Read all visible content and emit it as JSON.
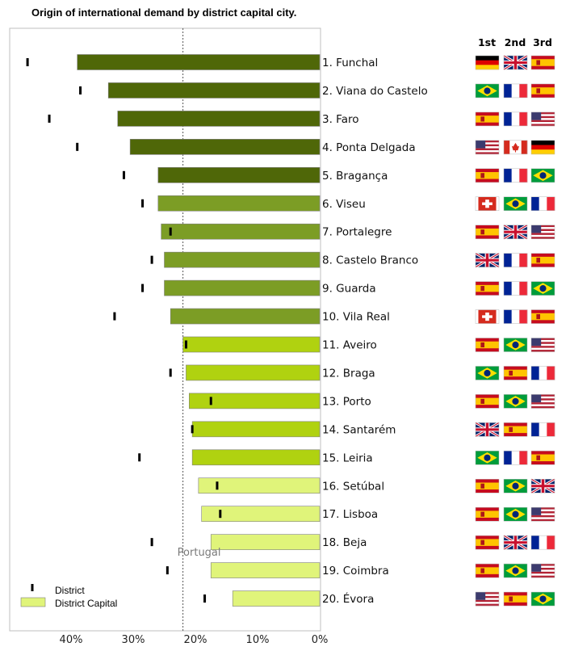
{
  "title": "Origin of international demand by district capital city.",
  "chart_data": {
    "type": "bar",
    "orientation": "horizontal",
    "x_axis": {
      "reversed": true,
      "min": 0,
      "max": 50,
      "ticks": [
        40,
        30,
        20,
        10,
        0
      ],
      "tick_labels": [
        "40%",
        "30%",
        "20%",
        "10%",
        "0%"
      ]
    },
    "reference_line": {
      "label": "Portugal",
      "value": 22
    },
    "categories": [
      "1. Funchal",
      "2. Viana do Castelo",
      "3. Faro",
      "4. Ponta Delgada",
      "5. Bragança",
      "6. Viseu",
      "7. Portalegre",
      "8. Castelo Branco",
      "9. Guarda",
      "10. Vila Real",
      "11. Aveiro",
      "12. Braga",
      "13. Porto",
      "14. Santarém",
      "15. Leiria",
      "16. Setúbal",
      "17. Lisboa",
      "18. Beja",
      "19. Coimbra",
      "20. Évora"
    ],
    "series": [
      {
        "name": "District Capital",
        "values": [
          39,
          34,
          32.5,
          30.5,
          26,
          26,
          25.5,
          25,
          25,
          24,
          22,
          21.5,
          21,
          20.5,
          20.5,
          19.5,
          19,
          17.5,
          17.5,
          14
        ]
      },
      {
        "name": "District",
        "values": [
          47,
          38.5,
          43.5,
          39,
          31.5,
          28.5,
          24,
          27,
          28.5,
          33,
          21.5,
          24,
          17.5,
          20.5,
          29,
          16.5,
          16,
          27,
          24.5,
          18.5
        ]
      }
    ],
    "bar_colors": [
      "#4f6708",
      "#4f6708",
      "#4f6708",
      "#4f6708",
      "#4f6708",
      "#7c9d25",
      "#7c9d25",
      "#7c9d25",
      "#7c9d25",
      "#7c9d25",
      "#b0d210",
      "#b0d210",
      "#b0d210",
      "#b0d210",
      "#b0d210",
      "#e0f47a",
      "#e0f47a",
      "#e0f47a",
      "#e0f47a",
      "#e0f47a"
    ],
    "legend": {
      "position": "bottom-left",
      "items": [
        "District",
        "District Capital"
      ]
    },
    "rank_headers": [
      "1st",
      "2nd",
      "3rd"
    ],
    "origins": [
      [
        "germany",
        "uk",
        "spain"
      ],
      [
        "brazil",
        "france",
        "spain"
      ],
      [
        "spain",
        "france",
        "usa"
      ],
      [
        "usa",
        "canada",
        "germany"
      ],
      [
        "spain",
        "france",
        "brazil"
      ],
      [
        "switzerland",
        "brazil",
        "france"
      ],
      [
        "spain",
        "uk",
        "usa"
      ],
      [
        "uk",
        "france",
        "spain"
      ],
      [
        "spain",
        "france",
        "brazil"
      ],
      [
        "switzerland",
        "france",
        "spain"
      ],
      [
        "spain",
        "brazil",
        "usa"
      ],
      [
        "brazil",
        "spain",
        "france"
      ],
      [
        "spain",
        "brazil",
        "usa"
      ],
      [
        "uk",
        "spain",
        "france"
      ],
      [
        "brazil",
        "france",
        "spain"
      ],
      [
        "spain",
        "brazil",
        "uk"
      ],
      [
        "spain",
        "brazil",
        "usa"
      ],
      [
        "spain",
        "uk",
        "france"
      ],
      [
        "spain",
        "brazil",
        "usa"
      ],
      [
        "usa",
        "spain",
        "brazil"
      ]
    ]
  }
}
